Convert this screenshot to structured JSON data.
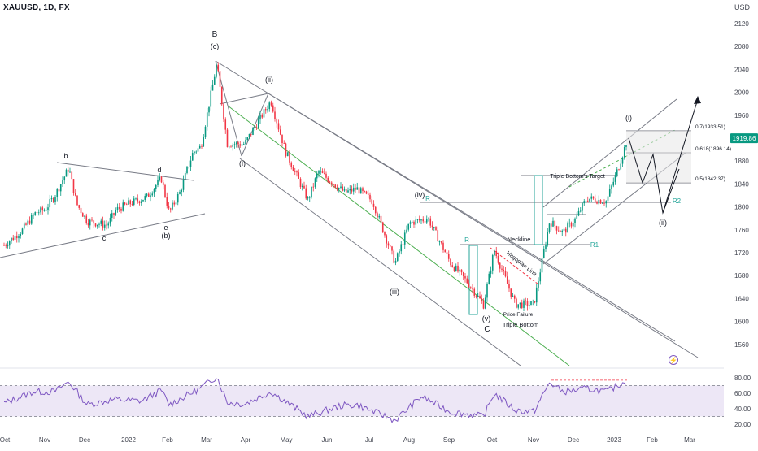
{
  "header": {
    "symbol": "XAUUSD, 1D, FX",
    "currency": "USD"
  },
  "colors": {
    "up": "#089981",
    "down": "#f23645",
    "channel": "#787b86",
    "green_line": "#4caf50",
    "rsi": "#7e57c2",
    "rsi_band": "#ede7f6",
    "price_badge": "#089981",
    "teal": "#26a69a",
    "dark": "#131722"
  },
  "chart_data": [
    {
      "type": "candlestick",
      "title": "",
      "ylim": [
        1540,
        2140
      ],
      "price_ticks": [
        2120,
        2080,
        2040,
        2000,
        1960,
        1920,
        1880,
        1840,
        1800,
        1760,
        1720,
        1680,
        1640,
        1600,
        1560
      ],
      "x_tick_labels": [
        "Oct",
        "Nov",
        "Dec",
        "2022",
        "Feb",
        "Mar",
        "Apr",
        "May",
        "Jun",
        "Jul",
        "Aug",
        "Sep",
        "Oct",
        "Nov",
        "Dec",
        "2023",
        "Feb",
        "Mar"
      ],
      "last_price": "1919.86",
      "close_path": [
        [
          "2021-09-28",
          1733
        ],
        [
          "2021-10-12",
          1760
        ],
        [
          "2021-10-22",
          1790
        ],
        [
          "2021-10-29",
          1795
        ],
        [
          "2021-11-05",
          1818
        ],
        [
          "2021-11-16",
          1868
        ],
        [
          "2021-11-22",
          1805
        ],
        [
          "2021-11-30",
          1775
        ],
        [
          "2021-12-15",
          1768
        ],
        [
          "2021-12-22",
          1795
        ],
        [
          "2021-12-31",
          1805
        ],
        [
          "2022-01-14",
          1817
        ],
        [
          "2022-01-25",
          1850
        ],
        [
          "2022-01-31",
          1790
        ],
        [
          "2022-02-08",
          1825
        ],
        [
          "2022-02-18",
          1895
        ],
        [
          "2022-02-24",
          1905
        ],
        [
          "2022-03-08",
          2050
        ],
        [
          "2022-03-16",
          1910
        ],
        [
          "2022-03-29",
          1910
        ],
        [
          "2022-04-18",
          1985
        ],
        [
          "2022-04-29",
          1897
        ],
        [
          "2022-05-16",
          1812
        ],
        [
          "2022-05-24",
          1862
        ],
        [
          "2022-06-13",
          1825
        ],
        [
          "2022-06-22",
          1832
        ],
        [
          "2022-07-04",
          1810
        ],
        [
          "2022-07-21",
          1702
        ],
        [
          "2022-08-01",
          1772
        ],
        [
          "2022-08-15",
          1780
        ],
        [
          "2022-09-01",
          1702
        ],
        [
          "2022-09-15",
          1665
        ],
        [
          "2022-09-26",
          1629
        ],
        [
          "2022-10-04",
          1725
        ],
        [
          "2022-10-20",
          1630
        ],
        [
          "2022-11-03",
          1630
        ],
        [
          "2022-11-15",
          1775
        ],
        [
          "2022-11-25",
          1755
        ],
        [
          "2022-12-05",
          1780
        ],
        [
          "2022-12-13",
          1815
        ],
        [
          "2022-12-28",
          1810
        ],
        [
          "2023-01-06",
          1868
        ],
        [
          "2023-01-13",
          1920
        ]
      ],
      "indicator": {
        "name": "",
        "ylim": [
          20,
          85
        ],
        "ticks": [
          80,
          60,
          40,
          20
        ],
        "band": [
          30,
          70
        ],
        "path": [
          [
            "2021-09-28",
            47
          ],
          [
            "2021-10-20",
            62
          ],
          [
            "2021-11-05",
            62
          ],
          [
            "2021-11-16",
            75
          ],
          [
            "2021-11-30",
            45
          ],
          [
            "2021-12-20",
            52
          ],
          [
            "2022-01-10",
            50
          ],
          [
            "2022-01-25",
            64
          ],
          [
            "2022-01-31",
            45
          ],
          [
            "2022-02-24",
            67
          ],
          [
            "2022-03-08",
            82
          ],
          [
            "2022-03-16",
            48
          ],
          [
            "2022-03-29",
            46
          ],
          [
            "2022-04-18",
            62
          ],
          [
            "2022-05-16",
            30
          ],
          [
            "2022-06-10",
            44
          ],
          [
            "2022-06-22",
            45
          ],
          [
            "2022-07-14",
            30
          ],
          [
            "2022-07-21",
            25
          ],
          [
            "2022-08-10",
            56
          ],
          [
            "2022-09-01",
            36
          ],
          [
            "2022-09-26",
            30
          ],
          [
            "2022-10-04",
            60
          ],
          [
            "2022-10-20",
            38
          ],
          [
            "2022-11-03",
            36
          ],
          [
            "2022-11-15",
            74
          ],
          [
            "2022-11-25",
            62
          ],
          [
            "2022-12-13",
            66
          ],
          [
            "2022-12-28",
            62
          ],
          [
            "2023-01-13",
            77
          ]
        ]
      }
    }
  ],
  "annotations": {
    "wave_B": "B",
    "wave_c_paren": "(c)",
    "wave_ii_top": "(ii)",
    "wave_i_low": "(i)",
    "wave_iii": "(iii)",
    "wave_iv": "(iv)",
    "wave_v": "(v)",
    "wave_C": "C",
    "tri_b": "b",
    "tri_c": "c",
    "tri_d": "d",
    "tri_e": "e",
    "tri_b_paren": "(b)",
    "wave_i_future": "(i)",
    "wave_ii_future": "(ii)",
    "label_R_1": "R",
    "label_R_2": "R",
    "label_R1": "R1",
    "label_R2": "R2",
    "neckline": "Neckline",
    "hagopian": "Hagopian Line",
    "triple_bottom_target": "Triple Bottom's Target",
    "price_failure": "Price Failure",
    "triple_bottom": "Triple Bottom",
    "fib_07": "0.7(1933.51)",
    "fib_0618": "0.618(1896.14)",
    "fib_05": "0.5(1842.37)"
  }
}
